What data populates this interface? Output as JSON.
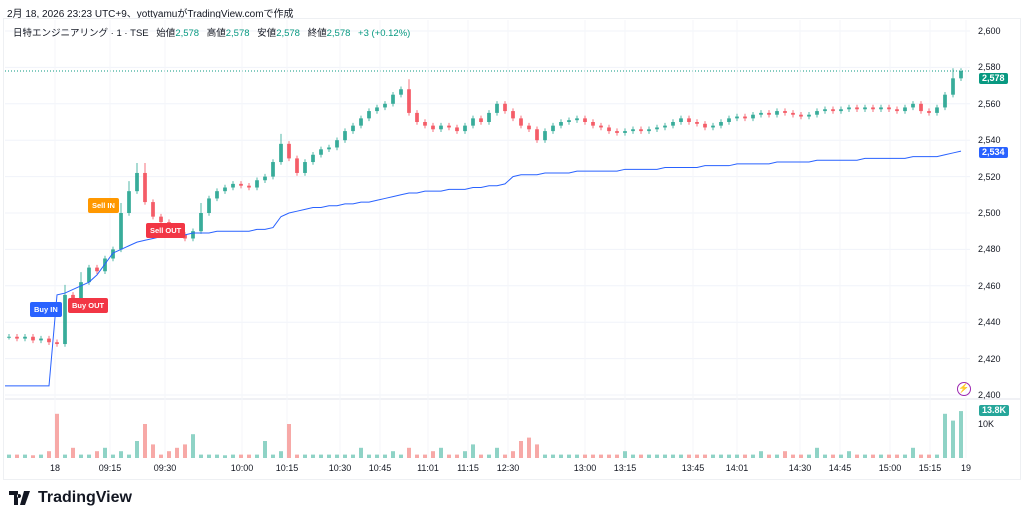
{
  "caption": "2月 18, 2026 23:23 UTC+9、yottyamuがTradingView.comで作成",
  "legend": {
    "symbol": "日特エンジニアリング · 1 · TSE",
    "open_label": "始値",
    "open": "2,578",
    "high_label": "高値",
    "high": "2,578",
    "low_label": "安値",
    "low": "2,578",
    "close_label": "終値",
    "close": "2,578",
    "change": "+3 (+0.12%)"
  },
  "price_axis": {
    "ticks": [
      "2,600",
      "2,580",
      "2,560",
      "2,540",
      "2,520",
      "2,500",
      "2,480",
      "2,460",
      "2,440",
      "2,420",
      "2,400"
    ],
    "current_price": "2,578",
    "vwap_price": "2,534",
    "volume_tick": "10K",
    "current_volume": "13.8K"
  },
  "time_axis": [
    "18",
    "09:15",
    "09:30",
    "10:00",
    "10:15",
    "10:30",
    "10:45",
    "11:01",
    "11:15",
    "12:30",
    "13:00",
    "13:15",
    "13:45",
    "14:01",
    "14:30",
    "14:45",
    "15:00",
    "15:15",
    "19"
  ],
  "markers": {
    "buy_in": "Buy IN",
    "buy_out": "Buy OUT",
    "sell_in": "Sell IN",
    "sell_out": "Sell OUT"
  },
  "colors": {
    "up": "#089981",
    "down": "#f23645",
    "vwap": "#2962ff",
    "sell_in": "#ff9800",
    "buy_in": "#2962ff"
  },
  "brand": "TradingView",
  "chart_data": {
    "type": "candlestick",
    "ylim": [
      2400,
      2600
    ],
    "closes": [
      2432,
      2431,
      2432,
      2430,
      2431,
      2429,
      2428,
      2455,
      2448,
      2462,
      2470,
      2468,
      2475,
      2480,
      2500,
      2512,
      2522,
      2506,
      2498,
      2495,
      2493,
      2488,
      2486,
      2490,
      2500,
      2508,
      2512,
      2514,
      2516,
      2515,
      2514,
      2518,
      2520,
      2528,
      2538,
      2530,
      2522,
      2528,
      2532,
      2535,
      2536,
      2540,
      2545,
      2548,
      2552,
      2556,
      2558,
      2560,
      2565,
      2568,
      2555,
      2550,
      2548,
      2546,
      2548,
      2547,
      2545,
      2548,
      2552,
      2550,
      2555,
      2560,
      2556,
      2552,
      2548,
      2546,
      2540,
      2545,
      2548,
      2550,
      2551,
      2552,
      2550,
      2548,
      2547,
      2545,
      2544,
      2545,
      2546,
      2545,
      2546,
      2547,
      2548,
      2550,
      2552,
      2550,
      2549,
      2547,
      2548,
      2550,
      2552,
      2553,
      2552,
      2554,
      2555,
      2554,
      2556,
      2555,
      2554,
      2553,
      2554,
      2556,
      2557,
      2556,
      2557,
      2558,
      2557,
      2558,
      2557,
      2558,
      2557,
      2556,
      2558,
      2560,
      2556,
      2555,
      2558,
      2565,
      2574,
      2578
    ],
    "vwap": [
      2405,
      2405,
      2405,
      2405,
      2405,
      2405,
      2455,
      2456,
      2458,
      2460,
      2462,
      2466,
      2472,
      2478,
      2480,
      2482,
      2484,
      2485,
      2486,
      2487,
      2487,
      2488,
      2488,
      2489,
      2489,
      2489,
      2490,
      2490,
      2490,
      2490,
      2490,
      2491,
      2491,
      2492,
      2498,
      2500,
      2501,
      2502,
      2503,
      2503,
      2504,
      2504,
      2505,
      2505,
      2506,
      2506,
      2507,
      2508,
      2509,
      2510,
      2511,
      2511,
      2512,
      2512,
      2512,
      2513,
      2513,
      2513,
      2514,
      2514,
      2515,
      2515,
      2516,
      2520,
      2521,
      2521,
      2521,
      2522,
      2522,
      2522,
      2522,
      2523,
      2523,
      2523,
      2523,
      2523,
      2523,
      2524,
      2524,
      2524,
      2524,
      2524,
      2525,
      2525,
      2525,
      2525,
      2525,
      2526,
      2526,
      2526,
      2526,
      2527,
      2527,
      2527,
      2527,
      2527,
      2528,
      2528,
      2528,
      2528,
      2528,
      2529,
      2529,
      2529,
      2529,
      2529,
      2529,
      2530,
      2530,
      2530,
      2530,
      2530,
      2530,
      2531,
      2531,
      2531,
      2531,
      2532,
      2533,
      2534
    ],
    "volume_k": [
      1,
      1,
      1,
      0.8,
      1,
      2,
      13,
      1,
      3,
      1,
      1,
      2,
      3,
      1,
      2,
      1,
      5,
      10,
      4,
      1,
      2,
      3,
      4,
      7,
      1,
      1,
      1,
      0.8,
      1,
      1,
      1,
      1,
      5,
      1,
      2,
      10,
      1,
      1,
      1,
      1,
      1,
      1,
      1,
      1,
      3,
      1,
      1,
      1,
      2,
      1,
      3,
      1,
      1,
      2,
      3,
      1,
      1,
      2,
      4,
      1,
      1,
      3,
      1,
      2,
      5,
      6,
      4,
      1,
      1,
      1,
      1,
      1,
      1,
      1,
      1,
      1,
      1,
      2,
      1,
      1,
      1,
      1,
      1,
      1,
      1,
      1,
      1,
      1,
      1,
      1,
      1,
      1,
      1,
      1,
      2,
      1,
      1,
      2,
      1,
      1,
      1,
      3,
      1,
      1,
      1,
      2,
      1,
      1,
      1,
      1,
      1,
      1,
      1,
      3,
      1,
      1,
      1,
      13,
      11,
      13.8
    ]
  }
}
